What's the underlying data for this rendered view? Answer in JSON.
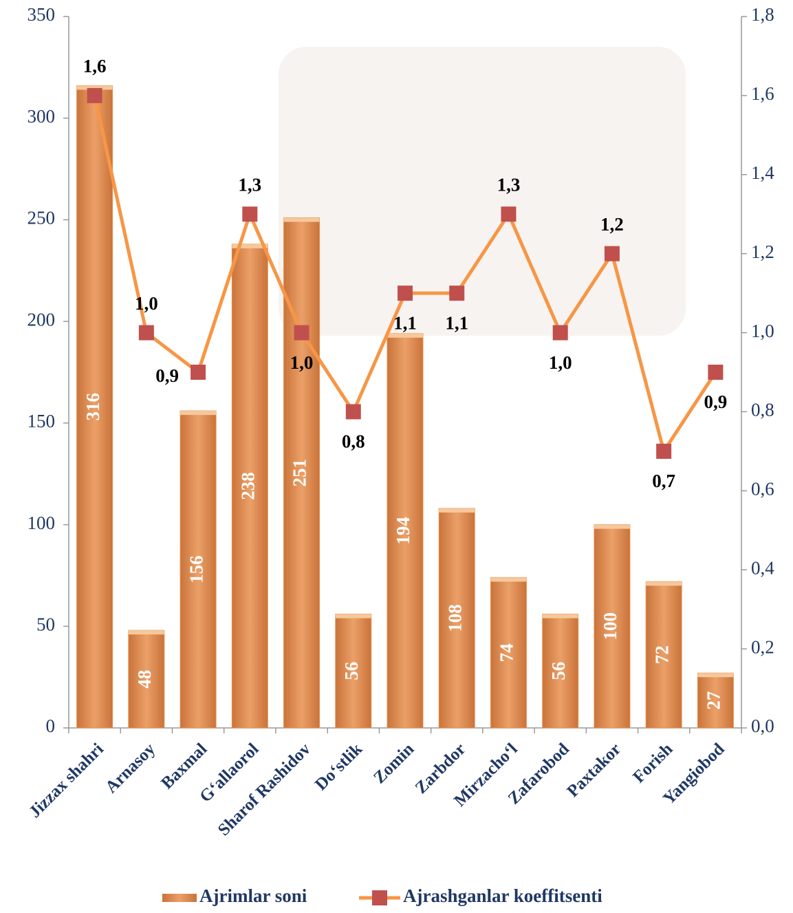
{
  "chart_data": {
    "type": "bar",
    "categories": [
      "Jizzax shahri",
      "Arnasoy",
      "Baxmal",
      "G‘allaorol",
      "Sharof Rashidov",
      "Do‘stlik",
      "Zomin",
      "Zarbdor",
      "Mirzacho‘l",
      "Zafarobod",
      "Paxtakor",
      "Forish",
      "Yangiobod"
    ],
    "series": [
      {
        "name": "Ajrimlar soni",
        "type": "bar",
        "color": "#e8904e",
        "values": [
          316,
          48,
          156,
          238,
          251,
          56,
          194,
          108,
          74,
          56,
          100,
          72,
          27
        ]
      },
      {
        "name": "Ajrashganlar koeffitsenti",
        "type": "line",
        "axis": "y2",
        "color": "#f79646",
        "marker_color": "#c0504d",
        "values": [
          1.6,
          1.0,
          0.9,
          1.3,
          1.0,
          0.8,
          1.1,
          1.1,
          1.3,
          1.0,
          1.2,
          0.7,
          0.9
        ],
        "value_labels": [
          "1,6",
          "1,0",
          "0,9",
          "1,3",
          "1,0",
          "0,8",
          "1,1",
          "1,1",
          "1,3",
          "1,0",
          "1,2",
          "0,7",
          "0,9"
        ]
      }
    ],
    "ylim": [
      0,
      350
    ],
    "yticks": [
      0,
      50,
      100,
      150,
      200,
      250,
      300,
      350
    ],
    "y2lim": [
      0,
      1.8
    ],
    "y2ticks": [
      {
        "value": 0,
        "label": "0,0"
      },
      {
        "value": 0.2,
        "label": "0,2"
      },
      {
        "value": 0.4,
        "label": "0,4"
      },
      {
        "value": 0.6,
        "label": "0,6"
      },
      {
        "value": 0.8,
        "label": "0,8"
      },
      {
        "value": 1.0,
        "label": "1,0"
      },
      {
        "value": 1.2,
        "label": "1,2"
      },
      {
        "value": 1.4,
        "label": "1,4"
      },
      {
        "value": 1.6,
        "label": "1,6"
      },
      {
        "value": 1.8,
        "label": "1,8"
      }
    ],
    "legend": "bottom"
  }
}
